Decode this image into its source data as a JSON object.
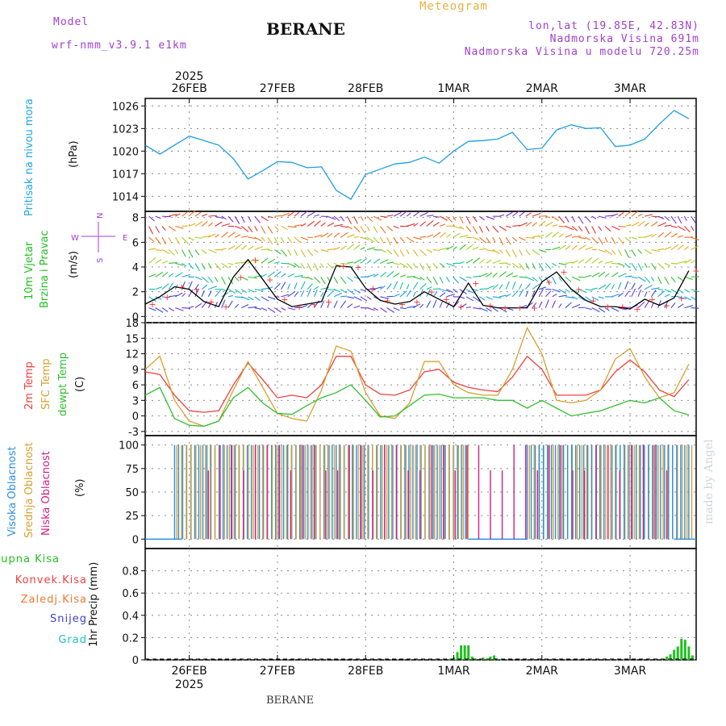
{
  "header": {
    "model_label": "Model",
    "model_name": "wrf-nmm_v3.9.1 e1km",
    "station": "BERANE",
    "product": "Meteogram",
    "coords": "lon,lat (19.85E, 42.83N)",
    "elevation": "Nadmorska Visina 691m",
    "model_elevation": "Nadmorska Visina u modelu 720.25m"
  },
  "footer": {
    "station": "BERANE",
    "credit": "made by Angel"
  },
  "time_axis": {
    "year": "2025",
    "day_labels": [
      "26FEB",
      "27FEB",
      "28FEB",
      "1MAR",
      "2MAR",
      "3MAR"
    ]
  },
  "colors": {
    "pressure": "#1e9ee0",
    "t2m": "#f04040",
    "sfc": "#d8a030",
    "dewpt": "#30c030",
    "high_cloud": "#2b8fe0",
    "mid_cloud": "#d8a030",
    "low_cloud": "#d02080",
    "total_precip": "#20c020",
    "wind_speed": "#000000",
    "header_purple": "#a040d0",
    "header_orange": "#e8b040"
  },
  "labels": {
    "pressure": [
      "Pritisak na nivou mora",
      "(hPa)"
    ],
    "wind": [
      "10m Vjetar",
      "Brzina i Pravac",
      "(m/s)"
    ],
    "compass": [
      "W",
      "E",
      "N",
      "S"
    ],
    "temp": [
      "2m Temp",
      "SFC Temp",
      "dewpt Temp",
      "(C)"
    ],
    "cloud": [
      "Visoka Oblacnost",
      "Srednja Oblacnost",
      "Niska Oblacnost",
      "(%)"
    ],
    "precip": [
      "Ukupna Kisa",
      "Konvek.Kisa",
      "Zaledj.Kisa",
      "Snijeg",
      "Grad",
      "1hr Precip (mm)"
    ]
  },
  "chart_data": [
    {
      "type": "line",
      "title": "Pritisak na nivou mora",
      "ylabel": "(hPa)",
      "ylim": [
        1012,
        1027
      ],
      "yticks": [
        1014,
        1017,
        1020,
        1023,
        1026
      ],
      "grid": true,
      "x_unit": "hours from 2025-02-26 00:00",
      "series": [
        {
          "name": "Pritisak na nivou mora",
          "color": "#1e9ee0",
          "x": [
            -12,
            -8,
            -4,
            0,
            4,
            8,
            12,
            16,
            20,
            24,
            28,
            32,
            36,
            40,
            44,
            48,
            52,
            56,
            60,
            64,
            68,
            72,
            76,
            80,
            84,
            88,
            92,
            96,
            100,
            104,
            108,
            112,
            116,
            120,
            124,
            128,
            132,
            136
          ],
          "values": [
            1020.8,
            1019.6,
            1020.8,
            1022.0,
            1021.4,
            1020.8,
            1019.0,
            1016.3,
            1017.4,
            1018.6,
            1018.5,
            1017.8,
            1017.9,
            1014.8,
            1013.6,
            1016.9,
            1017.6,
            1018.3,
            1018.5,
            1019.2,
            1018.4,
            1020.0,
            1021.3,
            1021.4,
            1021.6,
            1022.5,
            1020.2,
            1020.4,
            1022.8,
            1023.5,
            1023.0,
            1023.1,
            1020.6,
            1020.8,
            1021.6,
            1023.6,
            1025.4,
            1024.3
          ]
        }
      ]
    },
    {
      "type": "line",
      "title": "10m Vjetar Brzina i Pravac",
      "ylabel": "(m/s)",
      "ylim": [
        -0.5,
        8.5
      ],
      "yticks": [
        0,
        2,
        4,
        6,
        8
      ],
      "grid": true,
      "x_unit": "hours from 2025-02-26 00:00",
      "series": [
        {
          "name": "wind speed",
          "color": "#000000",
          "x": [
            -12,
            -8,
            -4,
            0,
            4,
            8,
            12,
            16,
            20,
            24,
            28,
            32,
            36,
            40,
            44,
            48,
            52,
            56,
            60,
            64,
            68,
            72,
            76,
            80,
            84,
            88,
            92,
            96,
            100,
            104,
            108,
            112,
            116,
            120,
            124,
            128,
            132,
            136
          ],
          "values": [
            1.0,
            1.6,
            2.4,
            2.2,
            1.2,
            0.8,
            3.2,
            4.6,
            3.0,
            1.4,
            0.8,
            1.0,
            1.2,
            4.1,
            4.0,
            2.3,
            1.3,
            1.0,
            1.2,
            2.0,
            1.4,
            0.8,
            2.7,
            0.9,
            0.7,
            0.7,
            0.7,
            2.8,
            3.6,
            2.2,
            1.3,
            0.8,
            0.8,
            0.6,
            1.4,
            0.9,
            1.5,
            3.7
          ]
        }
      ]
    },
    {
      "type": "line",
      "title": "2m Temp / SFC Temp / dewpt Temp",
      "ylabel": "(C)",
      "ylim": [
        -3.8,
        18
      ],
      "yticks": [
        -3,
        0,
        3,
        6,
        9,
        12,
        15,
        18
      ],
      "grid": true,
      "x_unit": "hours from 2025-02-26 00:00",
      "series": [
        {
          "name": "2m Temp",
          "color": "#f04040",
          "x": [
            -12,
            -8,
            -4,
            0,
            4,
            8,
            12,
            16,
            20,
            24,
            28,
            32,
            36,
            40,
            44,
            48,
            52,
            56,
            60,
            64,
            68,
            72,
            76,
            80,
            84,
            88,
            92,
            96,
            100,
            104,
            108,
            112,
            116,
            120,
            124,
            128,
            132,
            136
          ],
          "values": [
            8.5,
            8.0,
            4.0,
            1.0,
            0.7,
            1.0,
            6.0,
            10.2,
            7.0,
            3.5,
            4.0,
            3.5,
            6.0,
            11.5,
            11.5,
            6.0,
            4.2,
            4.0,
            5.0,
            8.5,
            9.0,
            6.5,
            5.5,
            5.0,
            4.7,
            7.5,
            11.5,
            9.0,
            4.0,
            4.0,
            4.0,
            5.0,
            8.5,
            10.8,
            8.5,
            5.0,
            3.7,
            7.0
          ]
        },
        {
          "name": "SFC Temp",
          "color": "#d8a030",
          "x": [
            -12,
            -8,
            -4,
            0,
            4,
            8,
            12,
            16,
            20,
            24,
            28,
            32,
            36,
            40,
            44,
            48,
            52,
            56,
            60,
            64,
            68,
            72,
            76,
            80,
            84,
            88,
            92,
            96,
            100,
            104,
            108,
            112,
            116,
            120,
            124,
            128,
            132,
            136
          ],
          "values": [
            9.0,
            11.5,
            3.0,
            -1.0,
            -2.0,
            -1.0,
            5.0,
            10.5,
            5.5,
            0.5,
            -0.5,
            -1.0,
            5.0,
            13.5,
            12.5,
            4.5,
            0.0,
            -0.5,
            2.5,
            10.5,
            10.5,
            6.0,
            4.5,
            4.0,
            4.0,
            9.0,
            17.0,
            12.0,
            3.0,
            2.5,
            3.0,
            5.0,
            11.0,
            13.0,
            7.5,
            3.5,
            4.5,
            10.0
          ]
        },
        {
          "name": "dewpt Temp",
          "color": "#30c030",
          "x": [
            -12,
            -8,
            -4,
            0,
            4,
            8,
            12,
            16,
            20,
            24,
            28,
            32,
            36,
            40,
            44,
            48,
            52,
            56,
            60,
            64,
            68,
            72,
            76,
            80,
            84,
            88,
            92,
            96,
            100,
            104,
            108,
            112,
            116,
            120,
            124,
            128,
            132,
            136
          ],
          "values": [
            4.0,
            5.5,
            -0.5,
            -1.8,
            -2.0,
            -1.0,
            3.5,
            5.5,
            2.5,
            0.5,
            0.3,
            2.0,
            3.5,
            4.5,
            6.0,
            3.0,
            -0.2,
            0.0,
            2.0,
            4.0,
            4.2,
            3.5,
            3.5,
            3.5,
            3.0,
            3.0,
            1.5,
            3.0,
            1.5,
            0.0,
            0.5,
            1.0,
            2.0,
            3.0,
            2.5,
            3.5,
            1.0,
            0.2
          ]
        }
      ]
    },
    {
      "type": "bar",
      "title": "Visoka / Srednja / Niska Oblacnost",
      "ylabel": "(%)",
      "ylim": [
        -10,
        110
      ],
      "yticks": [
        0,
        25,
        50,
        75,
        100
      ],
      "grid": true,
      "x_unit": "hours from 2025-02-26 00:00",
      "note_regions": [
        {
          "from": -4,
          "to": 76,
          "name": "Visoka Oblacnost",
          "value": 100
        },
        {
          "from": -4,
          "to": 76,
          "name": "Srednja Oblacnost",
          "value": 100
        },
        {
          "from": 92,
          "to": 138,
          "name": "Srednja Oblacnost",
          "value": 100
        },
        {
          "from": 92,
          "to": 136,
          "name": "Visoka Oblacnost",
          "value": 100
        },
        {
          "from": 4,
          "to": 132,
          "name": "Niska Oblacnost",
          "value": 100
        }
      ],
      "series": [
        {
          "name": "Visoka Oblacnost",
          "color": "#2b8fe0"
        },
        {
          "name": "Srednja Oblacnost",
          "color": "#d8a030"
        },
        {
          "name": "Niska Oblacnost",
          "color": "#d02080"
        }
      ]
    },
    {
      "type": "bar",
      "title": "1hr Precip",
      "ylabel": "1hr Precip (mm)",
      "ylim": [
        0,
        1.0
      ],
      "yticks": [
        0,
        0.2,
        0.4,
        0.6,
        0.8
      ],
      "grid": true,
      "x_unit": "hours from 2025-02-26 00:00",
      "series": [
        {
          "name": "Ukupna Kisa",
          "color": "#20c020",
          "x": [
            71,
            72,
            73,
            74,
            75,
            76,
            77,
            78,
            80,
            81,
            82,
            83,
            84,
            130,
            131,
            132,
            133,
            134,
            135,
            136,
            137
          ],
          "values": [
            0.01,
            0.02,
            0.07,
            0.13,
            0.13,
            0.13,
            0.03,
            0.01,
            0.02,
            0.01,
            0.03,
            0.04,
            0.01,
            0.03,
            0.05,
            0.09,
            0.12,
            0.19,
            0.18,
            0.12,
            0.04
          ]
        }
      ]
    }
  ]
}
